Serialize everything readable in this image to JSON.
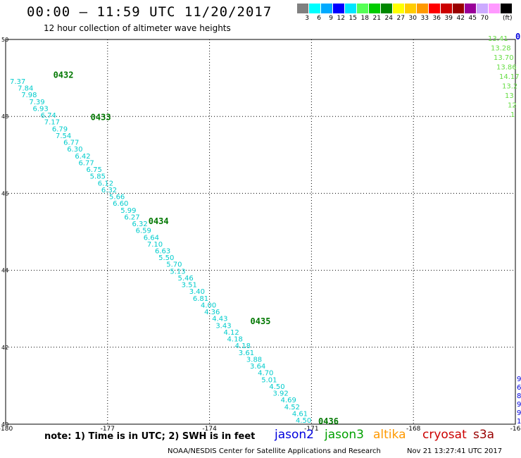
{
  "header": {
    "title": "00:00 – 11:59 UTC 11/20/2017",
    "subtitle": "12 hour collection of altimeter wave heights"
  },
  "colorbar": {
    "colors": [
      "#808080",
      "#00ffff",
      "#00aaff",
      "#0000ff",
      "#00e5ff",
      "#55ff55",
      "#00cc00",
      "#008800",
      "#ffff00",
      "#ffcc00",
      "#ff9900",
      "#ff0000",
      "#cc0000",
      "#990000",
      "#990099",
      "#ccaaff",
      "#ff99ff",
      "#000000"
    ],
    "labels": [
      "3",
      "6",
      "9",
      "12",
      "15",
      "18",
      "21",
      "24",
      "27",
      "30",
      "33",
      "36",
      "39",
      "42",
      "45",
      "70"
    ],
    "unit": "(ft)"
  },
  "axes": {
    "lon_ticks": [
      "-180",
      "-177",
      "-174",
      "-171",
      "-168",
      "-16"
    ],
    "lat_ticks": [
      "50",
      "48",
      "46",
      "44",
      "42",
      "40"
    ]
  },
  "chart_data": {
    "type": "scatter",
    "xlabel": "",
    "ylabel": "",
    "xlim": [
      -180,
      -165
    ],
    "ylim": [
      40,
      50
    ],
    "grid": true,
    "track_labels": [
      {
        "text": "0432",
        "lon": -178.6,
        "lat": 49.0
      },
      {
        "text": "0433",
        "lon": -177.5,
        "lat": 47.9
      },
      {
        "text": "0434",
        "lon": -175.8,
        "lat": 45.2
      },
      {
        "text": "0435",
        "lon": -172.8,
        "lat": 42.6
      },
      {
        "text": "0436",
        "lon": -170.8,
        "lat": 40.0
      },
      {
        "text": "0",
        "lon": -165.0,
        "lat": 50.0
      }
    ],
    "swh_values": [
      "7.37",
      "7.84",
      "7.98",
      "7.39",
      "6.93",
      "6.74",
      "7.17",
      "6.79",
      "7.54",
      "6.77",
      "6.30",
      "6.42",
      "6.77",
      "6.75",
      "5.85",
      "6.12",
      "6.32",
      "5.66",
      "6.60",
      "5.99",
      "6.27",
      "6.32",
      "6.59",
      "6.64",
      "7.10",
      "6.63",
      "5.50",
      "5.70",
      "5.13",
      "5.46",
      "3.51",
      "3.40",
      "6.81",
      "4.00",
      "4.36",
      "4.43",
      "3.43",
      "4.12",
      "4.18",
      "4.18",
      "3.61",
      "3.88",
      "3.64",
      "4.70",
      "5.01",
      "4.50",
      "3.92",
      "4.69",
      "4.52",
      "4.61",
      "4.50"
    ],
    "swh_values_right": [
      "13.41",
      "13.28",
      "13.70",
      "13.86",
      "14.17",
      "13.2",
      "13",
      "12",
      "1"
    ]
  },
  "note": "note: 1) Time is in UTC; 2) SWH is in feet",
  "legend": [
    {
      "label": "jason2",
      "color": "#0000dd"
    },
    {
      "label": "jason3",
      "color": "#00a000"
    },
    {
      "label": "altika",
      "color": "#ff9900"
    },
    {
      "label": "cryosat",
      "color": "#cc0000"
    },
    {
      "label": "s3a",
      "color": "#990000"
    }
  ],
  "footer": {
    "credit": "NOAA/NESDIS Center for Satellite Applications and Research",
    "timestamp": "Nov 21 13:27:41 UTC 2017"
  }
}
